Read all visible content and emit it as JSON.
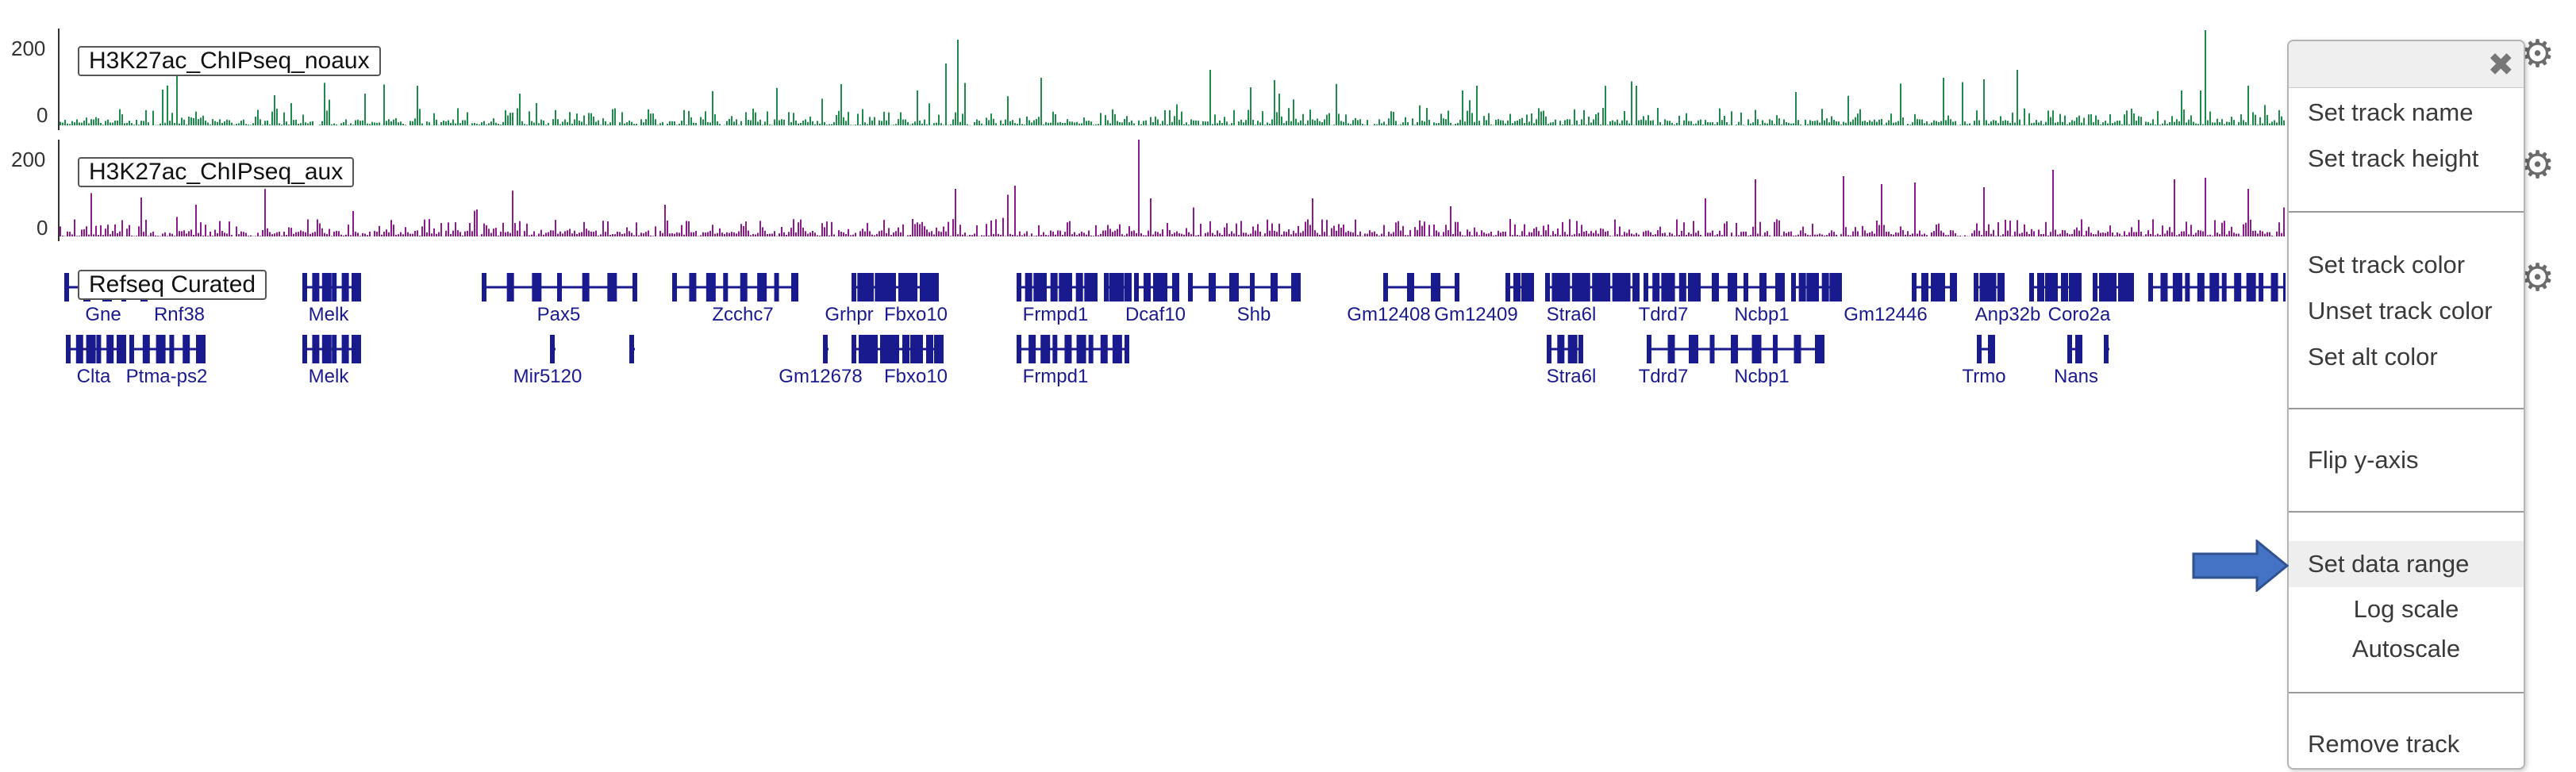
{
  "tracks": [
    {
      "name": "H3K27ac_ChIPseq_noaux",
      "axis_max": "200",
      "axis_min": "0",
      "color": "#1e8a4c"
    },
    {
      "name": "H3K27ac_ChIPseq_aux",
      "axis_max": "200",
      "axis_min": "0",
      "color": "#8b1a8b"
    }
  ],
  "gene_track": {
    "name": "Refseq Curated",
    "color": "#1a1a8f",
    "row1_genes": [
      "Gne",
      "Rnf38",
      "Melk",
      "Pax5",
      "Zcchc7",
      "Grhpr",
      "Fbxo10",
      "Frmpd1",
      "Dcaf10",
      "Shb",
      "Gm12408",
      "Gm12409",
      "Stra6l",
      "Tdrd7",
      "Ncbp1",
      "Gm12446",
      "Anp32b",
      "Coro2a"
    ],
    "row2_genes": [
      "Clta",
      "Ptma-ps2",
      "Melk",
      "Mir5120",
      "Gm12678",
      "Fbxo10",
      "Frmpd1",
      "Stra6l",
      "Tdrd7",
      "Ncbp1",
      "Trmo",
      "Nans"
    ]
  },
  "icons": {
    "gear": "gear-icon",
    "close": "close-icon",
    "pointer": "arrow-right-icon"
  },
  "menu": {
    "items": [
      {
        "label": "Set track name"
      },
      {
        "label": "Set track height"
      },
      {
        "label": "Set track color"
      },
      {
        "label": "Unset track color"
      },
      {
        "label": "Set alt color"
      },
      {
        "label": "Flip y-axis"
      },
      {
        "label": "Set data range"
      },
      {
        "label": "Log scale"
      },
      {
        "label": "Autoscale"
      },
      {
        "label": "Remove track"
      }
    ]
  },
  "accent_arrow_color": "#4472c4"
}
